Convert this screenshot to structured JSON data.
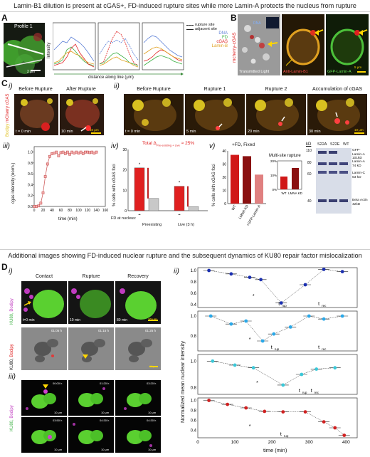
{
  "header_top": "Lamin-B1 dilution is present at cGAS+, FD-induced rupture sites while more Lamin-A protects the nucleus from rupture",
  "header_bottom": "Additional images showing FD-induced nuclear rupture and the subsequent dynamics of KU80 repair factor mislocalization",
  "panel_letters": {
    "A": "A",
    "B": "B",
    "C": "C",
    "D": "D"
  },
  "romans": {
    "i": "i)",
    "ii": "ii)",
    "iii": "iii)",
    "iv": "iv)",
    "v": "v)"
  },
  "panelA": {
    "profile_label": "Profile  1",
    "scale": "2 μm",
    "ylabel": "Intensity",
    "xlabel": "distance along line (μm)",
    "legend": [
      {
        "label": "rupture site",
        "style": "dashed"
      },
      {
        "label": "adjacent site",
        "style": "solid"
      }
    ],
    "channels": [
      {
        "label": "DNA",
        "color": "#5b7fd6"
      },
      {
        "label": "FD",
        "color": "#3cb043"
      },
      {
        "label": "cGAS",
        "color": "#e02020"
      },
      {
        "label": "Lamin-B",
        "color": "#e0a020"
      }
    ]
  },
  "panelB": {
    "label_left": "mcherry-cGAS",
    "label_dna": "DNA",
    "label_tl": "Transmitted Light",
    "label_b1": "Anti-Lamin-B1",
    "label_a": "GFP-Lamin-A",
    "scale": "5 μm"
  },
  "panelC_i": {
    "side_label": "Bodipy mCherry cGAS",
    "frames": [
      {
        "title": "Before Rupture",
        "time": "t = 0 min"
      },
      {
        "title": "After Rupture",
        "time": "10 min"
      }
    ],
    "scale": "10 μm"
  },
  "panelC_ii": {
    "frames": [
      {
        "title": "Before Rupture",
        "time": "t = 0 min"
      },
      {
        "title": "Rupture 1",
        "time": "5 min"
      },
      {
        "title": "Rupture 2",
        "time": "20 min"
      },
      {
        "title": "Accumulation of cGAS",
        "time": "30 min"
      }
    ],
    "scale": "10 μm"
  },
  "panelC_iii": {
    "ylabel": "cgas intensity (norm.)",
    "xlabel": "time (min)",
    "xticks": [
      "0",
      "20",
      "40",
      "60",
      "80",
      "100",
      "120",
      "140",
      "160"
    ],
    "yticks": [
      "0.0",
      "0.2",
      "0.4",
      "0.6",
      "0.8",
      "1.0"
    ]
  },
  "panelC_iv": {
    "title": "Total Δ",
    "title_sub": "Pre-existing + Live",
    "title_tail": " ≈ 25%",
    "ylabel": "% cells with cGAS foci",
    "yticks": [
      "0",
      "10",
      "20",
      "30"
    ],
    "fd_label": "FD at nucleus:",
    "fd_values": [
      "+",
      "-",
      "+",
      "-"
    ],
    "groups": [
      "Preexisting",
      "Live (3 h)"
    ]
  },
  "panelC_v": {
    "title": "+FD, Fixed",
    "ylabel": "% cells with cGAS foci",
    "yticks": [
      "0",
      "10",
      "20",
      "30",
      "40"
    ],
    "categories": [
      "WT",
      "LMNA KD",
      "+GFP-Lamin-A"
    ],
    "inset_title": "Multi-site rupture",
    "inset_yticks": [
      "0%",
      "10%",
      "20%"
    ],
    "inset_categories": [
      "WT",
      "LMNA KD"
    ]
  },
  "western": {
    "kd": "kD",
    "lanes": [
      "S22A",
      "S22E",
      "WT"
    ],
    "ladder": [
      "110",
      "80",
      "60",
      "40"
    ],
    "bands": [
      {
        "name": "GFP-Lamin-A",
        "size": "101kD"
      },
      {
        "name": "Lamin-A",
        "size": "74 kD"
      },
      {
        "name": "Lamin-C",
        "size": "63 kD"
      },
      {
        "name": "Beta Actin",
        "size": "42kD"
      }
    ]
  },
  "panelD_i": {
    "side_label_top": "KU80, Bodipy",
    "frames": [
      {
        "title": "Contact",
        "time": "t=0 min"
      },
      {
        "title": "Rupture",
        "time": "10 min"
      },
      {
        "title": "Recovery",
        "time": "80 min"
      }
    ],
    "scale": "10 μm",
    "side_label_mid": "KU80, Bodipy",
    "gray_times": [
      "01:05 h",
      "01:15 h",
      "01:25 h"
    ],
    "gray_scale": "10 μm"
  },
  "panelD_iii": {
    "side_label": "KU80, Bodipy",
    "times_top": [
      "00:00 h",
      "01:20 h",
      "03:20 h"
    ],
    "times_bot": [
      "03:50 h",
      "04:30 h",
      "04:30 h"
    ],
    "scale": "10 μm"
  },
  "panelD_ii": {
    "ylabel": "Normalized mean nuclear intensity",
    "xlabel": "time (min)",
    "xticks": [
      "0",
      "100",
      "200",
      "300",
      "400"
    ],
    "yticks": [
      "0.4",
      "0.6",
      "0.8",
      "1.0"
    ],
    "t_rup": "t",
    "t_rup_sub": "rup",
    "t_rec": "t",
    "t_rec_sub": "rec",
    "star": "*"
  },
  "chart_data": [
    {
      "type": "line",
      "title": "",
      "xlabel": "time (min)",
      "ylabel": "cgas intensity (norm.)",
      "xlim": [
        0,
        160
      ],
      "ylim": [
        0,
        1.1
      ],
      "series": [
        {
          "name": "",
          "x": [
            0,
            5,
            10,
            15,
            20,
            25,
            30,
            35,
            40,
            45,
            50,
            55,
            60,
            65,
            70,
            75,
            80,
            85,
            90,
            95,
            100,
            105,
            110,
            115,
            120,
            125,
            130,
            135,
            140
          ],
          "y": [
            0.0,
            0.0,
            0.01,
            0.06,
            0.25,
            0.55,
            0.78,
            0.92,
            0.97,
            0.98,
            1.0,
            0.93,
            0.99,
            1.0,
            0.97,
            1.0,
            0.96,
            1.0,
            0.98,
            1.0,
            0.98,
            1.0,
            0.97,
            1.0,
            1.0,
            0.99,
            1.0,
            0.98,
            1.0
          ]
        }
      ]
    },
    {
      "type": "bar",
      "title": "Total Δ Pre-existing + Live ≈ 25%",
      "ylabel": "% cells with cGAS foci",
      "ylim": [
        0,
        30
      ],
      "categories": [
        "Preexisting +",
        "Preexisting -",
        "Live (3 h) +",
        "Live (3 h) -"
      ],
      "values": [
        21,
        6,
        12,
        2
      ]
    },
    {
      "type": "bar",
      "title": "+FD, Fixed",
      "ylabel": "% cells with cGAS foci",
      "ylim": [
        0,
        40
      ],
      "categories": [
        "WT",
        "LMNA KD",
        "+GFP-Lamin-A"
      ],
      "values": [
        37,
        36,
        22
      ]
    },
    {
      "type": "bar",
      "title": "Multi-site rupture",
      "ylim": [
        0,
        20
      ],
      "categories": [
        "WT",
        "LMNA KD"
      ],
      "values": [
        9,
        15
      ]
    },
    {
      "type": "line",
      "title": "",
      "xlabel": "time (min)",
      "ylabel": "Normalized mean nuclear intensity",
      "xlim": [
        0,
        430
      ],
      "series": [
        {
          "name": "",
          "x": [
            30,
            90,
            140,
            170,
            225,
            290,
            340,
            390
          ],
          "y": [
            1.0,
            0.94,
            0.88,
            0.84,
            0.43,
            0.75,
            1.02,
            0.98
          ]
        },
        {
          "name": "",
          "x": [
            35,
            90,
            130,
            175,
            205,
            250,
            300,
            340,
            390
          ],
          "y": [
            1.0,
            0.92,
            0.95,
            0.75,
            0.82,
            0.89,
            1.0,
            0.97,
            1.0
          ]
        },
        {
          "name": "",
          "x": [
            40,
            100,
            150,
            230,
            280,
            320,
            370
          ],
          "y": [
            1.0,
            0.97,
            0.95,
            0.82,
            0.9,
            0.94,
            0.95
          ]
        },
        {
          "name": "",
          "x": [
            30,
            80,
            130,
            180,
            230,
            290,
            340,
            370,
            395
          ],
          "y": [
            1.0,
            0.92,
            0.85,
            0.78,
            0.77,
            0.77,
            0.57,
            0.45,
            0.3
          ]
        }
      ]
    }
  ]
}
